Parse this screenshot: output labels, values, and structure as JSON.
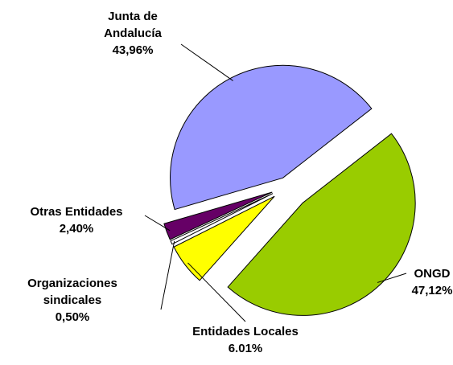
{
  "chart_data": {
    "type": "pie",
    "categories": [
      "ONGD",
      "Entidades Locales",
      "Organizaciones sindicales",
      "Otras Entidades",
      "Junta de Andalucía"
    ],
    "values": [
      47.12,
      6.01,
      0.5,
      2.4,
      43.96
    ],
    "value_labels": [
      "47,12%",
      "6.01%",
      "0,50%",
      "2,40%",
      "43,96%"
    ],
    "colors": [
      "#99cc00",
      "#ffff00",
      "#ffffff",
      "#660066",
      "#9999ff"
    ]
  }
}
